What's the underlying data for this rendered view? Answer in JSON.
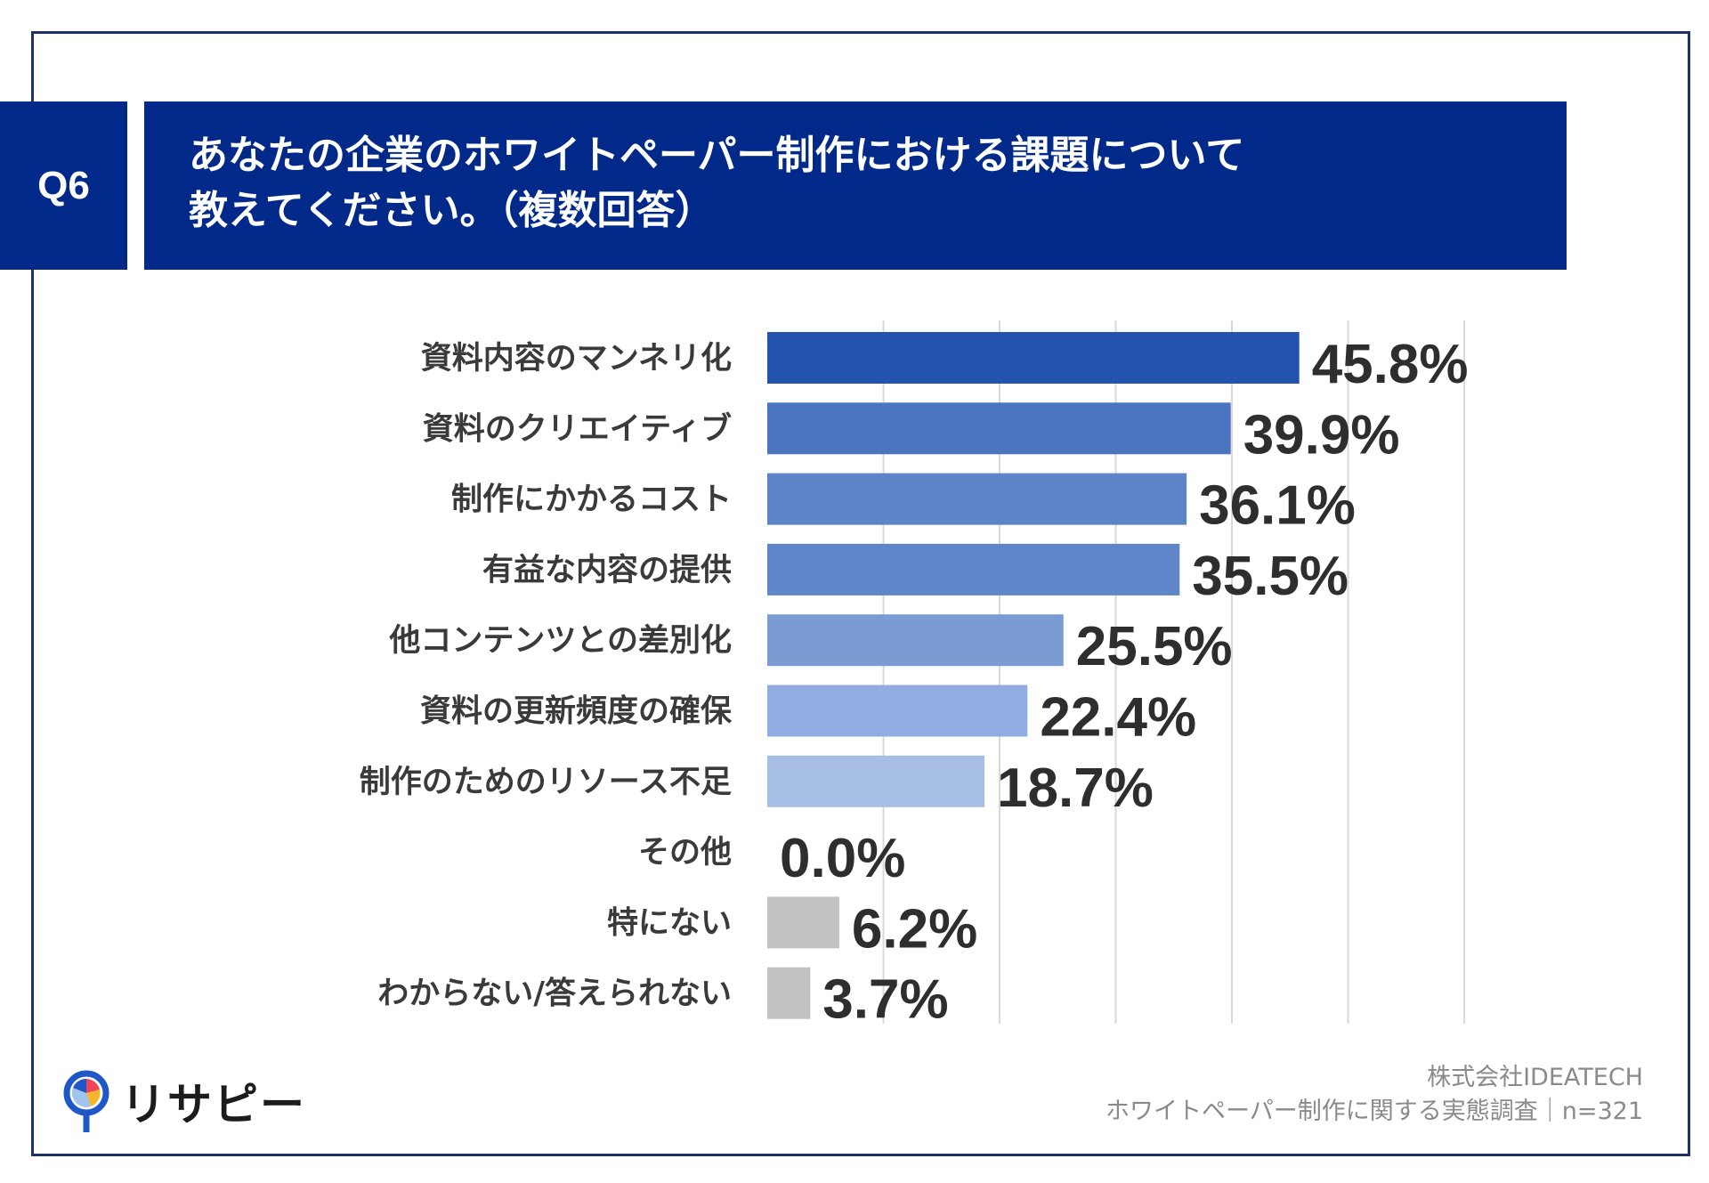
{
  "question": {
    "badge": "Q6",
    "title_line1": "あなたの企業のホワイトペーパー制作における課題について",
    "title_line2": "教えてください。（複数回答）"
  },
  "chart_data": {
    "type": "bar",
    "orientation": "horizontal",
    "categories": [
      "資料内容のマンネリ化",
      "資料のクリエイティブ",
      "制作にかかるコスト",
      "有益な内容の提供",
      "他コンテンツとの差別化",
      "資料の更新頻度の確保",
      "制作のためのリソース不足",
      "その他",
      "特にない",
      "わからない/答えられない"
    ],
    "values": [
      45.8,
      39.9,
      36.1,
      35.5,
      25.5,
      22.4,
      18.7,
      0.0,
      6.2,
      3.7
    ],
    "value_labels": [
      "45.8%",
      "39.9%",
      "36.1%",
      "35.5%",
      "25.5%",
      "22.4%",
      "18.7%",
      "0.0%",
      "6.2%",
      "3.7%"
    ],
    "colors": [
      "#2153af",
      "#4b75c0",
      "#5c84c6",
      "#5e86c8",
      "#7b9cd3",
      "#90ace0",
      "#a7bee5",
      "#c2c2c2",
      "#c2c2c2",
      "#c2c2c2"
    ],
    "xlim": [
      0,
      60
    ],
    "grid_interval": 10,
    "grid": true,
    "unit": "%"
  },
  "brand": {
    "name": "リサピー",
    "icon": "magnifier-pie-icon"
  },
  "footer": {
    "company": "株式会社IDEATECH",
    "survey": "ホワイトペーパー制作に関する実態調査｜n=321"
  }
}
